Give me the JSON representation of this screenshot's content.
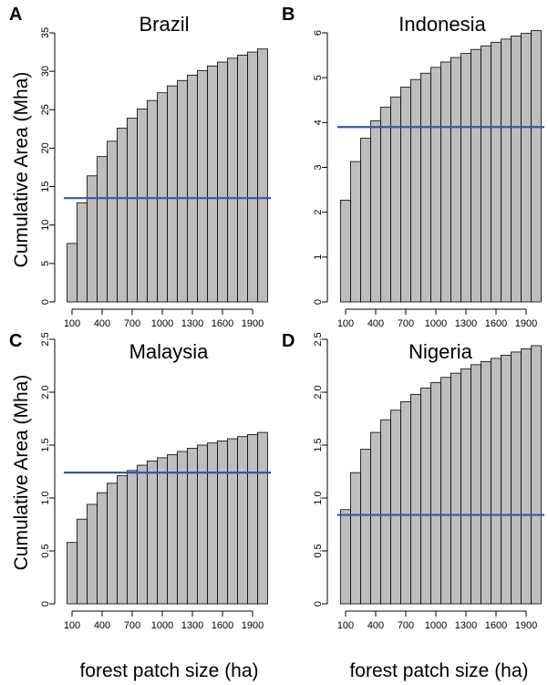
{
  "chart_data": [
    {
      "type": "bar",
      "panel_letter": "A",
      "title": "Brazil",
      "ylabel": "Cumulative Area (Mha)",
      "xlabel": "",
      "categories": [
        100,
        200,
        300,
        400,
        500,
        600,
        700,
        800,
        900,
        1000,
        1100,
        1200,
        1300,
        1400,
        1500,
        1600,
        1700,
        1800,
        1900,
        2000
      ],
      "values": [
        7.6,
        12.9,
        16.4,
        18.9,
        20.9,
        22.6,
        23.9,
        25.1,
        26.2,
        27.2,
        28.1,
        28.8,
        29.5,
        30.1,
        30.7,
        31.2,
        31.7,
        32.1,
        32.5,
        32.9
      ],
      "reference_line": 13.5,
      "ylim": [
        0,
        35
      ],
      "yticks": [
        0,
        5,
        10,
        15,
        20,
        25,
        30,
        35
      ],
      "xtick_labels": [
        "100",
        "400",
        "700",
        "1000",
        "1300",
        "1600",
        "1900"
      ]
    },
    {
      "type": "bar",
      "panel_letter": "B",
      "title": "Indonesia",
      "ylabel": "",
      "xlabel": "",
      "categories": [
        100,
        200,
        300,
        400,
        500,
        600,
        700,
        800,
        900,
        1000,
        1100,
        1200,
        1300,
        1400,
        1500,
        1600,
        1700,
        1800,
        1900,
        2000
      ],
      "values": [
        2.27,
        3.13,
        3.65,
        4.04,
        4.34,
        4.57,
        4.79,
        4.96,
        5.1,
        5.23,
        5.35,
        5.45,
        5.54,
        5.63,
        5.71,
        5.79,
        5.86,
        5.93,
        5.99,
        6.05
      ],
      "reference_line": 3.9,
      "ylim": [
        0,
        6
      ],
      "yticks": [
        0,
        1,
        2,
        3,
        4,
        5,
        6
      ],
      "xtick_labels": [
        "100",
        "400",
        "700",
        "1000",
        "1300",
        "1600",
        "1900"
      ]
    },
    {
      "type": "bar",
      "panel_letter": "C",
      "title": "Malaysia",
      "ylabel": "Cumulative Area (Mha)",
      "xlabel": "forest patch size (ha)",
      "categories": [
        100,
        200,
        300,
        400,
        500,
        600,
        700,
        800,
        900,
        1000,
        1100,
        1200,
        1300,
        1400,
        1500,
        1600,
        1700,
        1800,
        1900,
        2000
      ],
      "values": [
        0.58,
        0.8,
        0.94,
        1.05,
        1.14,
        1.21,
        1.26,
        1.31,
        1.35,
        1.38,
        1.41,
        1.44,
        1.47,
        1.5,
        1.52,
        1.54,
        1.56,
        1.58,
        1.6,
        1.62
      ],
      "reference_line": 1.24,
      "ylim": [
        0,
        2.5
      ],
      "yticks": [
        0,
        0.5,
        1.0,
        1.5,
        2.0,
        2.5
      ],
      "ytick_labels": [
        "0",
        "0.5",
        "1.0",
        "1.5",
        "2.0",
        "2.5"
      ],
      "xtick_labels": [
        "100",
        "400",
        "700",
        "1000",
        "1300",
        "1600",
        "1900"
      ]
    },
    {
      "type": "bar",
      "panel_letter": "D",
      "title": "Nigeria",
      "ylabel": "",
      "xlabel": "forest patch size (ha)",
      "categories": [
        100,
        200,
        300,
        400,
        500,
        600,
        700,
        800,
        900,
        1000,
        1100,
        1200,
        1300,
        1400,
        1500,
        1600,
        1700,
        1800,
        1900,
        2000
      ],
      "values": [
        0.89,
        1.24,
        1.46,
        1.62,
        1.74,
        1.83,
        1.91,
        1.98,
        2.04,
        2.09,
        2.14,
        2.18,
        2.22,
        2.26,
        2.29,
        2.32,
        2.35,
        2.38,
        2.41,
        2.44
      ],
      "reference_line": 0.84,
      "ylim": [
        0,
        2.5
      ],
      "yticks": [
        0,
        0.5,
        1.0,
        1.5,
        2.0,
        2.5
      ],
      "ytick_labels": [
        "0",
        "0.5",
        "1.0",
        "1.5",
        "2.0",
        "2.5"
      ],
      "xtick_labels": [
        "100",
        "400",
        "700",
        "1000",
        "1300",
        "1600",
        "1900"
      ]
    }
  ],
  "colors": {
    "bar_fill": "#bebebe",
    "bar_edge": "#000000",
    "reference_line": "#3457a6"
  }
}
